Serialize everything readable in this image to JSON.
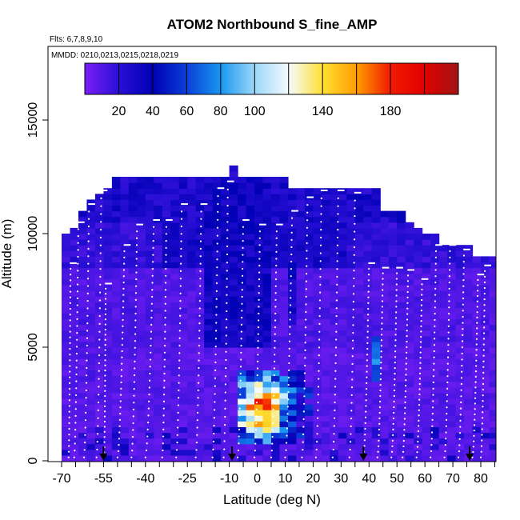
{
  "chart_data": {
    "type": "heatmap",
    "title": "ATOM2 Northbound S_fine_AMP",
    "flights_note": "Flts: 6,7,8,9,10",
    "dates_note": "MMDD: 0210,0213,0215,0218,0219",
    "xlabel": "Latitude (deg N)",
    "ylabel": "Altitude (m)",
    "xlim": [
      -72,
      87
    ],
    "ylim": [
      0,
      17500
    ],
    "x_ticks": [
      -70,
      -55,
      -40,
      -25,
      -10,
      0,
      10,
      20,
      30,
      40,
      50,
      60,
      70,
      80
    ],
    "x_tick_labels": [
      "-70",
      "-55",
      "-40",
      "-25",
      "-10",
      "0",
      "10",
      "20",
      "30",
      "40",
      "50",
      "60",
      "70",
      "80"
    ],
    "x_minor_ticks": [
      -65,
      -60,
      -50,
      -45,
      -35,
      -30,
      -20,
      -15,
      -5,
      5,
      15,
      25,
      35,
      45,
      55,
      65,
      75,
      85
    ],
    "y_ticks": [
      0,
      5000,
      10000,
      15000
    ],
    "y_tick_labels": [
      "0",
      "5000",
      "10000",
      "15000"
    ],
    "colorbar": {
      "min": 0,
      "max": 220,
      "ticks": [
        20,
        40,
        60,
        80,
        100,
        140,
        180
      ],
      "tick_labels": [
        "20",
        "40",
        "60",
        "80",
        "100",
        "140",
        "180"
      ],
      "divisions": [
        20,
        40,
        60,
        80,
        100,
        120,
        140,
        160,
        180,
        200
      ],
      "stops": [
        "#7a1ff5",
        "#2a0fd6",
        "#0000b4",
        "#0a3fd8",
        "#1896f0",
        "#9cd8f8",
        "#f4fbff",
        "#ffe033",
        "#ff9d00",
        "#f21a00",
        "#e10000",
        "#a01414"
      ]
    },
    "latitude_bins": [
      -70,
      -67,
      -64,
      -61,
      -58,
      -55,
      -52,
      -49,
      -46,
      -43,
      -40,
      -37,
      -34,
      -31,
      -28,
      -25,
      -22,
      -19,
      -16,
      -13,
      -10,
      -7,
      -4,
      -1,
      2,
      5,
      8,
      11,
      14,
      17,
      20,
      23,
      26,
      29,
      32,
      35,
      38,
      41,
      44,
      47,
      50,
      53,
      56,
      59,
      62,
      65,
      68,
      71,
      74,
      77,
      80,
      83
    ],
    "column_tops_m": [
      9800,
      10100,
      10800,
      11400,
      11600,
      12000,
      12400,
      12400,
      12400,
      12400,
      12400,
      12400,
      12400,
      12400,
      12400,
      12400,
      12400,
      12400,
      12400,
      12400,
      12900,
      12400,
      12400,
      12400,
      12400,
      12400,
      12400,
      12000,
      12000,
      12000,
      12000,
      12000,
      12000,
      12000,
      12000,
      12000,
      12000,
      11900,
      11000,
      10800,
      10800,
      10300,
      10200,
      9900,
      9900,
      9500,
      9400,
      9400,
      9300,
      9000,
      9000,
      9000
    ],
    "enhanced_region": {
      "lat_range": [
        -10,
        18
      ],
      "alt_range_m": [
        800,
        4000
      ],
      "peak_value": 180,
      "peak_lat": 0,
      "peak_alt_m": 2300,
      "peak_range": [
        100,
        200
      ]
    },
    "background_values": {
      "lower_troposphere": 10,
      "upper_troposphere": 20,
      "tropical_upper": 35
    },
    "profile_tracks": [
      {
        "lat0": -67.5,
        "lat1": -66.8,
        "top": 8700
      },
      {
        "lat0": -65.5,
        "lat1": -64.0,
        "top": 10500
      },
      {
        "lat0": -62.0,
        "lat1": -60.2,
        "top": 11300
      },
      {
        "lat0": -57.5,
        "lat1": -55.8,
        "top": 11900
      },
      {
        "lat0": -54.8,
        "lat1": -54.2,
        "top": 7800
      },
      {
        "lat0": -50.0,
        "lat1": -47.5,
        "top": 9500
      },
      {
        "lat0": -45.0,
        "lat1": -43.0,
        "top": 10400
      },
      {
        "lat0": -40.0,
        "lat1": -37.0,
        "top": 10600
      },
      {
        "lat0": -34.0,
        "lat1": -32.5,
        "top": 10600
      },
      {
        "lat0": -29.0,
        "lat1": -27.0,
        "top": 11300
      },
      {
        "lat0": -22.0,
        "lat1": -20.0,
        "top": 11300
      },
      {
        "lat0": -16.0,
        "lat1": -14.0,
        "top": 12000
      },
      {
        "lat0": -12.0,
        "lat1": -10.5,
        "top": 12300
      },
      {
        "lat0": -7.0,
        "lat1": -5.0,
        "top": 10600
      },
      {
        "lat0": -1.0,
        "lat1": 1.0,
        "top": 10400
      },
      {
        "lat0": 5.0,
        "lat1": 7.0,
        "top": 10400
      },
      {
        "lat0": 10.0,
        "lat1": 12.5,
        "top": 11000
      },
      {
        "lat0": 16.0,
        "lat1": 18.0,
        "top": 11600
      },
      {
        "lat0": 21.0,
        "lat1": 23.0,
        "top": 11900
      },
      {
        "lat0": 27.0,
        "lat1": 29.0,
        "top": 11900
      },
      {
        "lat0": 33.0,
        "lat1": 35.0,
        "top": 11800
      },
      {
        "lat0": 38.0,
        "lat1": 40.0,
        "top": 8700
      },
      {
        "lat0": 43.0,
        "lat1": 45.0,
        "top": 8500
      },
      {
        "lat0": 48.0,
        "lat1": 50.0,
        "top": 8500
      },
      {
        "lat0": 52.0,
        "lat1": 54.0,
        "top": 8400
      },
      {
        "lat0": 57.0,
        "lat1": 59.0,
        "top": 8000
      },
      {
        "lat0": 62.0,
        "lat1": 64.0,
        "top": 9500
      },
      {
        "lat0": 67.0,
        "lat1": 69.0,
        "top": 9500
      },
      {
        "lat0": 72.0,
        "lat1": 74.0,
        "top": 9300
      },
      {
        "lat0": 77.0,
        "lat1": 79.0,
        "top": 8200
      },
      {
        "lat0": 80.0,
        "lat1": 81.5,
        "top": 8600
      }
    ],
    "arrow_latitudes": [
      -55,
      -9,
      38,
      76
    ]
  }
}
